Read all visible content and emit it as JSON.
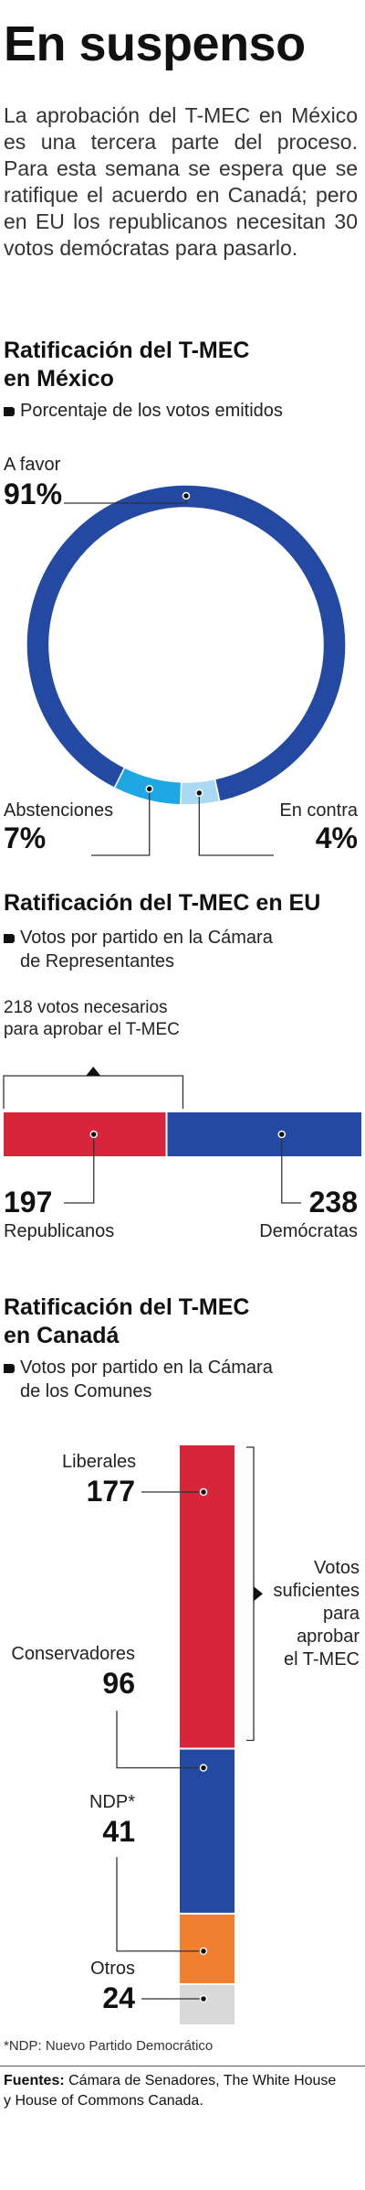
{
  "title": "En suspenso",
  "intro": "La aprobación del T-MEC en México es una tercera parte del proceso. Para esta semana se espera que se ratifique el acuerdo en Canadá; pero en EU los republicanos necesitan 30 votos demócratas para pasarlo.",
  "mexico": {
    "heading_line1": "Ratificación del T-MEC",
    "heading_line2": "en México",
    "subtitle": "Porcentaje de los votos emitidos",
    "labels": {
      "favor_label": "A favor",
      "favor_value": "91%",
      "abst_label": "Abstenciones",
      "abst_value": "7%",
      "contra_label": "En contra",
      "contra_value": "4%"
    }
  },
  "eu": {
    "heading": "Ratificación del T-MEC en EU",
    "subtitle_line1": "Votos por partido en la Cámara",
    "subtitle_line2": "de Representantes",
    "threshold_line1": "218 votos necesarios",
    "threshold_line2": "para aprobar el T-MEC",
    "rep_value": "197",
    "rep_label": "Republicanos",
    "dem_value": "238",
    "dem_label": "Demócratas"
  },
  "canada": {
    "heading_line1": "Ratificación del T-MEC",
    "heading_line2": "en Canadá",
    "subtitle_line1": "Votos por partido en la Cámara",
    "subtitle_line2": "de los Comunes",
    "bracket_line1": "Votos",
    "bracket_line2": "suficientes",
    "bracket_line3": "para",
    "bracket_line4": "aprobar",
    "bracket_line5": "el T-MEC",
    "parties": [
      {
        "label": "Liberales",
        "value": "177"
      },
      {
        "label": "Conservadores",
        "value": "96"
      },
      {
        "label": "NDP*",
        "value": "41"
      },
      {
        "label": "Otros",
        "value": "24"
      }
    ],
    "footnote": "*NDP: Nuevo Partido Democrático"
  },
  "sources": {
    "label": "Fuentes:",
    "line1": " Cámara de Senadores, The White House",
    "line2": "y House of Commons Canada."
  },
  "colors": {
    "blue": "#2449a2",
    "cyan": "#1ea7e4",
    "lightblue": "#aad9f2",
    "red": "#d7253a",
    "orange": "#f07f2f",
    "gray": "#d9d9d9"
  },
  "chart_data": [
    {
      "type": "pie",
      "title": "Ratificación del T-MEC en México",
      "subtitle": "Porcentaje de los votos emitidos",
      "categories": [
        "A favor",
        "Abstenciones",
        "En contra"
      ],
      "values": [
        91,
        7,
        4
      ],
      "colors": [
        "#2449a2",
        "#1ea7e4",
        "#aad9f2"
      ],
      "unit": "%"
    },
    {
      "type": "bar",
      "orientation": "horizontal-stacked",
      "title": "Ratificación del T-MEC en EU",
      "subtitle": "Votos por partido en la Cámara de Representantes",
      "categories": [
        "Republicanos",
        "Demócratas"
      ],
      "values": [
        197,
        238
      ],
      "colors": [
        "#d7253a",
        "#2449a2"
      ],
      "threshold": {
        "value": 218,
        "label": "218 votos necesarios para aprobar el T-MEC"
      }
    },
    {
      "type": "bar",
      "orientation": "vertical-stacked",
      "title": "Ratificación del T-MEC en Canadá",
      "subtitle": "Votos por partido en la Cámara de los Comunes",
      "categories": [
        "Liberales",
        "Conservadores",
        "NDP*",
        "Otros"
      ],
      "values": [
        177,
        96,
        41,
        24
      ],
      "colors": [
        "#d7253a",
        "#2449a2",
        "#f07f2f",
        "#d9d9d9"
      ],
      "annotation": "Votos suficientes para aprobar el T-MEC"
    }
  ]
}
